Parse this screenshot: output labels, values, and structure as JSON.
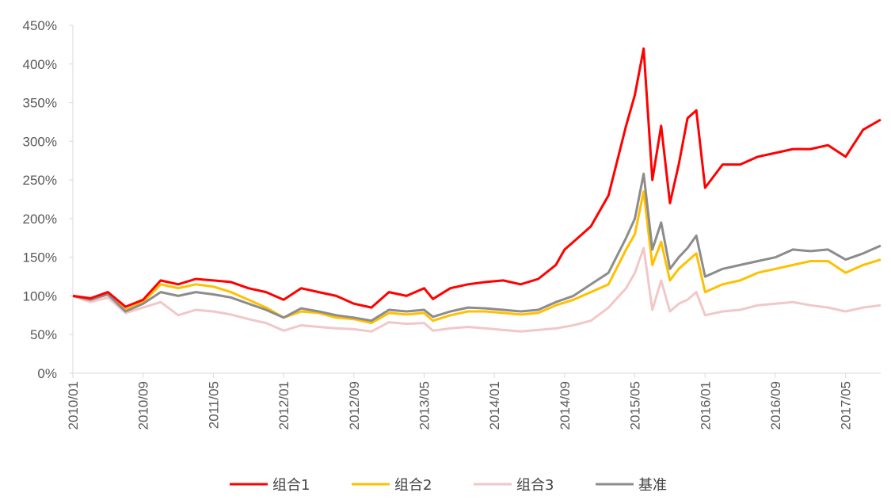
{
  "chart_data": {
    "type": "line",
    "title": "",
    "xlabel": "",
    "ylabel": "",
    "ylim": [
      0,
      4.5
    ],
    "y_ticks": [
      "0%",
      "50%",
      "100%",
      "150%",
      "200%",
      "250%",
      "300%",
      "350%",
      "400%",
      "450%"
    ],
    "x_ticks": [
      "2010/01",
      "2010/09",
      "2011/05",
      "2012/01",
      "2012/09",
      "2013/05",
      "2014/01",
      "2014/09",
      "2015/05",
      "2016/01",
      "2016/09",
      "2017/05"
    ],
    "x_range": [
      "2010/01",
      "2017/09"
    ],
    "grid": false,
    "legend_position": "bottom",
    "series": [
      {
        "name": "组合1",
        "color": "#ff0000",
        "points": [
          [
            "2010/01",
            1.0
          ],
          [
            "2010/03",
            0.97
          ],
          [
            "2010/05",
            1.05
          ],
          [
            "2010/07",
            0.86
          ],
          [
            "2010/09",
            0.95
          ],
          [
            "2010/11",
            1.2
          ],
          [
            "2011/01",
            1.15
          ],
          [
            "2011/03",
            1.22
          ],
          [
            "2011/05",
            1.2
          ],
          [
            "2011/07",
            1.18
          ],
          [
            "2011/09",
            1.1
          ],
          [
            "2011/11",
            1.05
          ],
          [
            "2012/01",
            0.95
          ],
          [
            "2012/03",
            1.1
          ],
          [
            "2012/05",
            1.05
          ],
          [
            "2012/07",
            1.0
          ],
          [
            "2012/09",
            0.9
          ],
          [
            "2012/11",
            0.85
          ],
          [
            "2013/01",
            1.05
          ],
          [
            "2013/03",
            1.0
          ],
          [
            "2013/05",
            1.1
          ],
          [
            "2013/06",
            0.96
          ],
          [
            "2013/08",
            1.1
          ],
          [
            "2013/10",
            1.15
          ],
          [
            "2013/12",
            1.18
          ],
          [
            "2014/02",
            1.2
          ],
          [
            "2014/04",
            1.15
          ],
          [
            "2014/06",
            1.22
          ],
          [
            "2014/08",
            1.4
          ],
          [
            "2014/09",
            1.6
          ],
          [
            "2014/10",
            1.7
          ],
          [
            "2014/12",
            1.9
          ],
          [
            "2015/02",
            2.3
          ],
          [
            "2015/04",
            3.2
          ],
          [
            "2015/05",
            3.6
          ],
          [
            "2015/06",
            4.2
          ],
          [
            "2015/07",
            2.5
          ],
          [
            "2015/08",
            3.2
          ],
          [
            "2015/09",
            2.2
          ],
          [
            "2015/10",
            2.7
          ],
          [
            "2015/11",
            3.3
          ],
          [
            "2015/12",
            3.4
          ],
          [
            "2016/01",
            2.4
          ],
          [
            "2016/03",
            2.7
          ],
          [
            "2016/05",
            2.7
          ],
          [
            "2016/07",
            2.8
          ],
          [
            "2016/09",
            2.85
          ],
          [
            "2016/11",
            2.9
          ],
          [
            "2017/01",
            2.9
          ],
          [
            "2017/03",
            2.95
          ],
          [
            "2017/05",
            2.8
          ],
          [
            "2017/07",
            3.15
          ],
          [
            "2017/09",
            3.28
          ]
        ]
      },
      {
        "name": "组合2",
        "color": "#ffc000",
        "points": [
          [
            "2010/01",
            1.0
          ],
          [
            "2010/03",
            0.95
          ],
          [
            "2010/05",
            1.03
          ],
          [
            "2010/07",
            0.82
          ],
          [
            "2010/09",
            0.92
          ],
          [
            "2010/11",
            1.15
          ],
          [
            "2011/01",
            1.1
          ],
          [
            "2011/03",
            1.15
          ],
          [
            "2011/05",
            1.12
          ],
          [
            "2011/07",
            1.05
          ],
          [
            "2011/09",
            0.95
          ],
          [
            "2011/11",
            0.85
          ],
          [
            "2012/01",
            0.72
          ],
          [
            "2012/03",
            0.8
          ],
          [
            "2012/05",
            0.78
          ],
          [
            "2012/07",
            0.72
          ],
          [
            "2012/09",
            0.7
          ],
          [
            "2012/11",
            0.65
          ],
          [
            "2013/01",
            0.78
          ],
          [
            "2013/03",
            0.76
          ],
          [
            "2013/05",
            0.78
          ],
          [
            "2013/06",
            0.68
          ],
          [
            "2013/08",
            0.75
          ],
          [
            "2013/10",
            0.8
          ],
          [
            "2013/12",
            0.8
          ],
          [
            "2014/02",
            0.78
          ],
          [
            "2014/04",
            0.76
          ],
          [
            "2014/06",
            0.78
          ],
          [
            "2014/08",
            0.88
          ],
          [
            "2014/10",
            0.95
          ],
          [
            "2014/12",
            1.05
          ],
          [
            "2015/02",
            1.15
          ],
          [
            "2015/04",
            1.6
          ],
          [
            "2015/05",
            1.8
          ],
          [
            "2015/06",
            2.35
          ],
          [
            "2015/07",
            1.4
          ],
          [
            "2015/08",
            1.7
          ],
          [
            "2015/09",
            1.2
          ],
          [
            "2015/10",
            1.35
          ],
          [
            "2015/11",
            1.45
          ],
          [
            "2015/12",
            1.55
          ],
          [
            "2016/01",
            1.05
          ],
          [
            "2016/03",
            1.15
          ],
          [
            "2016/05",
            1.2
          ],
          [
            "2016/07",
            1.3
          ],
          [
            "2016/09",
            1.35
          ],
          [
            "2016/11",
            1.4
          ],
          [
            "2017/01",
            1.45
          ],
          [
            "2017/03",
            1.45
          ],
          [
            "2017/05",
            1.3
          ],
          [
            "2017/07",
            1.4
          ],
          [
            "2017/09",
            1.47
          ]
        ]
      },
      {
        "name": "组合3",
        "color": "#f2c7c7",
        "points": [
          [
            "2010/01",
            1.0
          ],
          [
            "2010/03",
            0.92
          ],
          [
            "2010/05",
            0.98
          ],
          [
            "2010/07",
            0.78
          ],
          [
            "2010/09",
            0.85
          ],
          [
            "2010/11",
            0.92
          ],
          [
            "2011/01",
            0.75
          ],
          [
            "2011/03",
            0.82
          ],
          [
            "2011/05",
            0.8
          ],
          [
            "2011/07",
            0.76
          ],
          [
            "2011/09",
            0.7
          ],
          [
            "2011/11",
            0.65
          ],
          [
            "2012/01",
            0.55
          ],
          [
            "2012/03",
            0.62
          ],
          [
            "2012/05",
            0.6
          ],
          [
            "2012/07",
            0.58
          ],
          [
            "2012/09",
            0.57
          ],
          [
            "2012/11",
            0.54
          ],
          [
            "2013/01",
            0.66
          ],
          [
            "2013/03",
            0.64
          ],
          [
            "2013/05",
            0.65
          ],
          [
            "2013/06",
            0.55
          ],
          [
            "2013/08",
            0.58
          ],
          [
            "2013/10",
            0.6
          ],
          [
            "2013/12",
            0.58
          ],
          [
            "2014/02",
            0.56
          ],
          [
            "2014/04",
            0.54
          ],
          [
            "2014/06",
            0.56
          ],
          [
            "2014/08",
            0.58
          ],
          [
            "2014/10",
            0.62
          ],
          [
            "2014/12",
            0.68
          ],
          [
            "2015/02",
            0.85
          ],
          [
            "2015/04",
            1.1
          ],
          [
            "2015/05",
            1.3
          ],
          [
            "2015/06",
            1.62
          ],
          [
            "2015/07",
            0.82
          ],
          [
            "2015/08",
            1.2
          ],
          [
            "2015/09",
            0.8
          ],
          [
            "2015/10",
            0.9
          ],
          [
            "2015/11",
            0.95
          ],
          [
            "2015/12",
            1.05
          ],
          [
            "2016/01",
            0.75
          ],
          [
            "2016/03",
            0.8
          ],
          [
            "2016/05",
            0.82
          ],
          [
            "2016/07",
            0.88
          ],
          [
            "2016/09",
            0.9
          ],
          [
            "2016/11",
            0.92
          ],
          [
            "2017/01",
            0.88
          ],
          [
            "2017/03",
            0.85
          ],
          [
            "2017/05",
            0.8
          ],
          [
            "2017/07",
            0.85
          ],
          [
            "2017/09",
            0.88
          ]
        ]
      },
      {
        "name": "基准",
        "color": "#8c8c8c",
        "points": [
          [
            "2010/01",
            1.0
          ],
          [
            "2010/03",
            0.95
          ],
          [
            "2010/05",
            1.02
          ],
          [
            "2010/07",
            0.8
          ],
          [
            "2010/09",
            0.9
          ],
          [
            "2010/11",
            1.05
          ],
          [
            "2011/01",
            1.0
          ],
          [
            "2011/03",
            1.05
          ],
          [
            "2011/05",
            1.02
          ],
          [
            "2011/07",
            0.98
          ],
          [
            "2011/09",
            0.9
          ],
          [
            "2011/11",
            0.82
          ],
          [
            "2012/01",
            0.72
          ],
          [
            "2012/03",
            0.84
          ],
          [
            "2012/05",
            0.8
          ],
          [
            "2012/07",
            0.75
          ],
          [
            "2012/09",
            0.72
          ],
          [
            "2012/11",
            0.68
          ],
          [
            "2013/01",
            0.82
          ],
          [
            "2013/03",
            0.8
          ],
          [
            "2013/05",
            0.82
          ],
          [
            "2013/06",
            0.73
          ],
          [
            "2013/08",
            0.8
          ],
          [
            "2013/10",
            0.85
          ],
          [
            "2013/12",
            0.84
          ],
          [
            "2014/02",
            0.82
          ],
          [
            "2014/04",
            0.8
          ],
          [
            "2014/06",
            0.82
          ],
          [
            "2014/08",
            0.92
          ],
          [
            "2014/10",
            1.0
          ],
          [
            "2014/12",
            1.15
          ],
          [
            "2015/02",
            1.3
          ],
          [
            "2015/04",
            1.75
          ],
          [
            "2015/05",
            2.0
          ],
          [
            "2015/06",
            2.58
          ],
          [
            "2015/07",
            1.6
          ],
          [
            "2015/08",
            1.95
          ],
          [
            "2015/09",
            1.35
          ],
          [
            "2015/10",
            1.5
          ],
          [
            "2015/11",
            1.62
          ],
          [
            "2015/12",
            1.78
          ],
          [
            "2016/01",
            1.25
          ],
          [
            "2016/03",
            1.35
          ],
          [
            "2016/05",
            1.4
          ],
          [
            "2016/07",
            1.45
          ],
          [
            "2016/09",
            1.5
          ],
          [
            "2016/11",
            1.6
          ],
          [
            "2017/01",
            1.58
          ],
          [
            "2017/03",
            1.6
          ],
          [
            "2017/05",
            1.47
          ],
          [
            "2017/07",
            1.55
          ],
          [
            "2017/09",
            1.65
          ]
        ]
      }
    ]
  }
}
